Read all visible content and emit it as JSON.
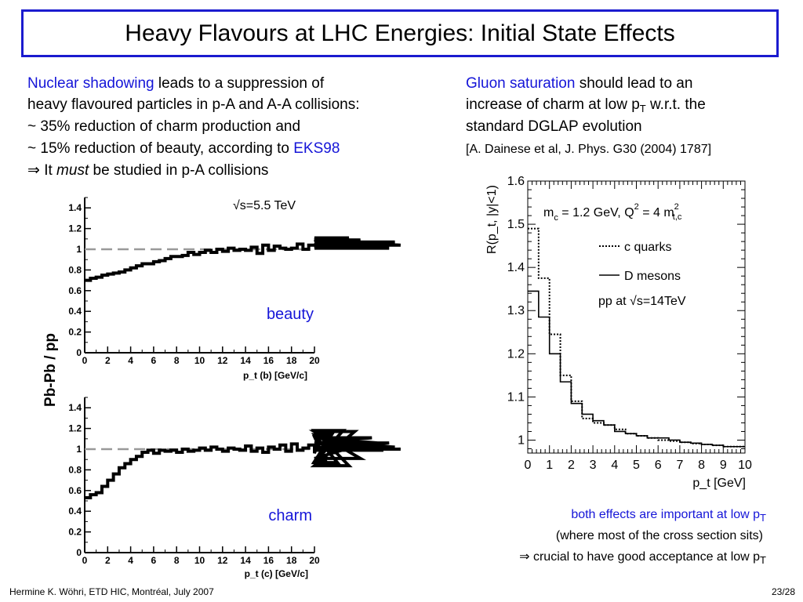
{
  "title": "Heavy Flavours at LHC Energies: Initial State Effects",
  "left_text": {
    "l1_hl": "Nuclear shadowing",
    "l1_rest": " leads to a suppression of",
    "l2": "heavy flavoured particles in p-A and A-A collisions:",
    "l3": "~ 35% reduction of charm production and",
    "l4_pre": "~ 15% reduction of beauty, according to ",
    "l4_hl": "EKS98",
    "l5_arrow": "⇒",
    "l5_pre": " It ",
    "l5_em": "must",
    "l5_post": " be studied in p-A collisions"
  },
  "right_text": {
    "r1_hl": "Gluon saturation",
    "r1_rest": " should lead to an",
    "r2_pre": "increase of charm at low p",
    "r2_sub": "T",
    "r2_post": " w.r.t. the",
    "r3": "standard DGLAP evolution",
    "r4": "[A. Dainese et al, J. Phys. G30 (2004) 1787]"
  },
  "bottom_text": {
    "b1_pre": "both effects are important at low p",
    "b1_sub": "T",
    "b2": "(where most of the cross section sits)",
    "b3_pre": "⇒ crucial to have good acceptance at low p",
    "b3_sub": "T"
  },
  "footer": {
    "left": "Hermine K. Wöhri, ETD HIC, Montréal, July 2007",
    "page": "23/28"
  },
  "colors": {
    "accent": "#1515d8",
    "reference_line": "#999999"
  },
  "chart_data": [
    {
      "type": "line",
      "panel": "beauty",
      "shared_ylabel": "Pb-Pb / pp",
      "energy_label": "√s=5.5 TeV",
      "panel_label": "beauty",
      "xlabel": "p_t (b) [GeV/c]",
      "xticks": [
        "0",
        "2",
        "4",
        "6",
        "8",
        "10",
        "12",
        "14",
        "16",
        "18",
        "20"
      ],
      "yticks": [
        "0",
        "0.2",
        "0.4",
        "0.6",
        "0.8",
        "1",
        "1.2",
        "1.4"
      ],
      "xlim": [
        0,
        20
      ],
      "ylim": [
        0,
        1.5
      ],
      "reference_line": 1,
      "bin_width": 0.5,
      "values": [
        0.7,
        0.72,
        0.73,
        0.75,
        0.76,
        0.77,
        0.78,
        0.8,
        0.82,
        0.84,
        0.86,
        0.86,
        0.88,
        0.89,
        0.91,
        0.93,
        0.93,
        0.94,
        0.97,
        0.95,
        0.97,
        0.99,
        0.97,
        1.0,
        0.98,
        1.01,
        0.99,
        1.0,
        0.99,
        1.02,
        0.96,
        1.04,
        0.99,
        1.03,
        1.01,
        1.0,
        1.01,
        1.05,
        1.0,
        1.04,
        1.04,
        1.09,
        1.04,
        1.02,
        1.1,
        1.04,
        1.11,
        1.02,
        1.09,
        1.02,
        1.06,
        1.03,
        1.04,
        1.01,
        1.07,
        1.04
      ]
    },
    {
      "type": "line",
      "panel": "charm",
      "panel_label": "charm",
      "xlabel": "p_t (c) [GeV/c]",
      "xticks": [
        "0",
        "2",
        "4",
        "6",
        "8",
        "10",
        "12",
        "14",
        "16",
        "18",
        "20"
      ],
      "yticks": [
        "0",
        "0.2",
        "0.4",
        "0.6",
        "0.8",
        "1",
        "1.2",
        "1.4"
      ],
      "xlim": [
        0,
        20
      ],
      "ylim": [
        0,
        1.5
      ],
      "reference_line": 1,
      "bin_width": 0.5,
      "values": [
        0.53,
        0.56,
        0.58,
        0.64,
        0.7,
        0.76,
        0.82,
        0.86,
        0.9,
        0.93,
        0.97,
        0.99,
        0.96,
        0.99,
        0.98,
        0.99,
        0.97,
        1.0,
        0.98,
        0.99,
        1.01,
        0.99,
        1.02,
        1.0,
        0.98,
        1.01,
        1.0,
        0.99,
        1.03,
        0.98,
        1.01,
        0.97,
        1.02,
        1.0,
        1.04,
        0.98,
        1.05,
        0.99,
        1.01,
        1.04,
        0.96,
        1.12,
        0.88,
        1.14,
        0.87,
        1.18,
        0.84,
        1.17,
        0.91,
        1.06,
        1.11,
        1.06,
        0.99,
        1.06,
        1.02,
        1.0
      ]
    },
    {
      "type": "line",
      "panel": "saturation",
      "ylabel": "R(p_t, |y|<1)",
      "xlabel": "p_t [GeV]",
      "annotation": "m_c = 1.2 GeV, Q² = 4 m²_t,c",
      "annotation_parts": {
        "m": "m",
        "m_sub": "c",
        "mid": " = 1.2 GeV, Q",
        "q_sup": "2",
        "mid2": " = 4 m",
        "m2_sup": "2",
        "m2_sub": "t,c"
      },
      "system_label": "pp at √s=14TeV",
      "xticks": [
        "0",
        "1",
        "2",
        "3",
        "4",
        "5",
        "6",
        "7",
        "8",
        "9",
        "10"
      ],
      "yticks": [
        "1",
        "1.1",
        "1.2",
        "1.3",
        "1.4",
        "1.5",
        "1.6"
      ],
      "xlim": [
        0,
        10
      ],
      "ylim": [
        0.97,
        1.6
      ],
      "bin_edges": [
        0,
        0.5,
        1,
        1.5,
        2,
        2.5,
        3,
        3.5,
        4,
        4.5,
        5,
        5.5,
        6,
        6.5,
        7,
        7.5,
        8,
        8.5,
        9,
        9.5,
        10
      ],
      "series": [
        {
          "name": "c quarks",
          "style": "dotted",
          "values": [
            1.49,
            1.375,
            1.245,
            1.15,
            1.09,
            1.05,
            1.04,
            1.035,
            1.025,
            1.015,
            1.01,
            1.005,
            1.0,
            0.998,
            0.995,
            0.992,
            0.99,
            0.988,
            0.985,
            0.985
          ]
        },
        {
          "name": "D mesons",
          "style": "solid",
          "values": [
            1.345,
            1.285,
            1.2,
            1.135,
            1.085,
            1.06,
            1.045,
            1.035,
            1.02,
            1.015,
            1.01,
            1.005,
            1.005,
            1.0,
            0.995,
            0.993,
            0.99,
            0.988,
            0.985,
            0.985
          ]
        }
      ]
    }
  ]
}
